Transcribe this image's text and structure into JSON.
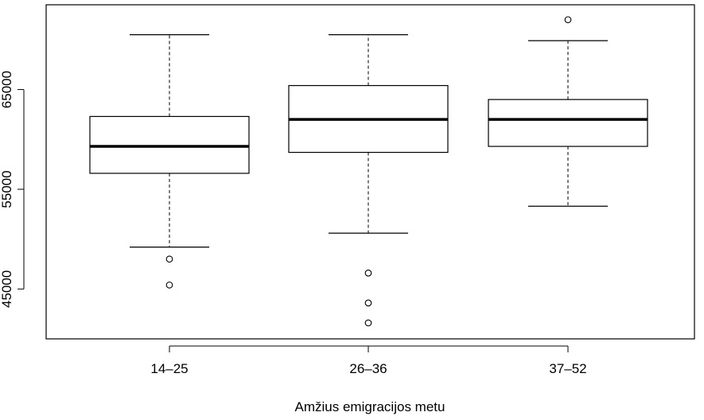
{
  "chart_data": {
    "type": "boxplot",
    "xlabel": "Amžius emigracijos metu",
    "ylabel": "",
    "ylim": [
      40000,
      73500
    ],
    "yticks": [
      45000,
      55000,
      65000
    ],
    "ytick_labels": [
      "45000",
      "55000",
      "65000"
    ],
    "grid": false,
    "categories": [
      "14–25",
      "26–36",
      "37–52"
    ],
    "boxes": [
      {
        "category": "14–25",
        "whisker_low": 49200,
        "q1": 56600,
        "median": 59300,
        "q3": 62300,
        "whisker_high": 70500,
        "outliers": [
          48000,
          45400
        ]
      },
      {
        "category": "26–36",
        "whisker_low": 50600,
        "q1": 58700,
        "median": 62000,
        "q3": 65400,
        "whisker_high": 70500,
        "outliers": [
          46600,
          43600,
          41600
        ]
      },
      {
        "category": "37–52",
        "whisker_low": 53300,
        "q1": 59300,
        "median": 62000,
        "q3": 64000,
        "whisker_high": 69900,
        "outliers": [
          72000
        ]
      }
    ]
  }
}
